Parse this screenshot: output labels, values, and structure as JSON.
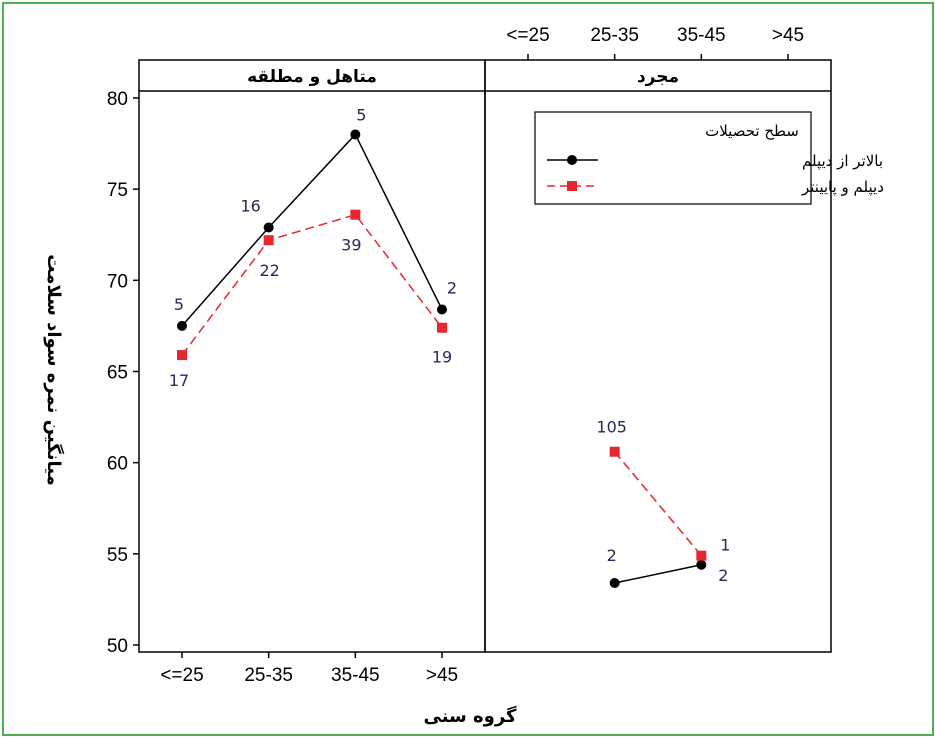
{
  "chart_data": {
    "type": "line",
    "xlabel": "گروه سنی",
    "ylabel": "میانگین نمره سواد سلامت",
    "categories": [
      "<=25",
      "25-35",
      "35-45",
      ">45"
    ],
    "ylim": [
      50,
      80
    ],
    "yticks": [
      50,
      55,
      60,
      65,
      70,
      75,
      80
    ],
    "legend": {
      "title": "سطح تحصیلات",
      "position": "top-right",
      "entries": [
        "بالاتر از دیپلم",
        "دیپلم و پایینتر"
      ]
    },
    "series_styles": [
      {
        "color": "#000000",
        "dash": "solid",
        "marker": "circle"
      },
      {
        "color": "#e8262f",
        "dash": "dashed",
        "marker": "square"
      }
    ],
    "panels": [
      {
        "title": "متاهل و مطلقه",
        "series": [
          {
            "name": "بالاتر از دیپلم",
            "values": [
              67.5,
              72.9,
              78.0,
              68.4
            ],
            "counts": [
              "5",
              "16",
              "5",
              "2"
            ]
          },
          {
            "name": "دیپلم و پایینتر",
            "values": [
              65.9,
              72.2,
              73.6,
              67.4
            ],
            "counts": [
              "17",
              "22",
              "39",
              "19"
            ]
          }
        ]
      },
      {
        "title": "مجرد",
        "series": [
          {
            "name": "بالاتر از دیپلم",
            "values": [
              null,
              53.4,
              54.4,
              null
            ],
            "counts": [
              "",
              "2",
              "2",
              ""
            ]
          },
          {
            "name": "دیپلم و پایینتر",
            "values": [
              null,
              60.6,
              54.9,
              null
            ],
            "counts": [
              "",
              "105",
              "1",
              ""
            ]
          }
        ]
      }
    ]
  }
}
